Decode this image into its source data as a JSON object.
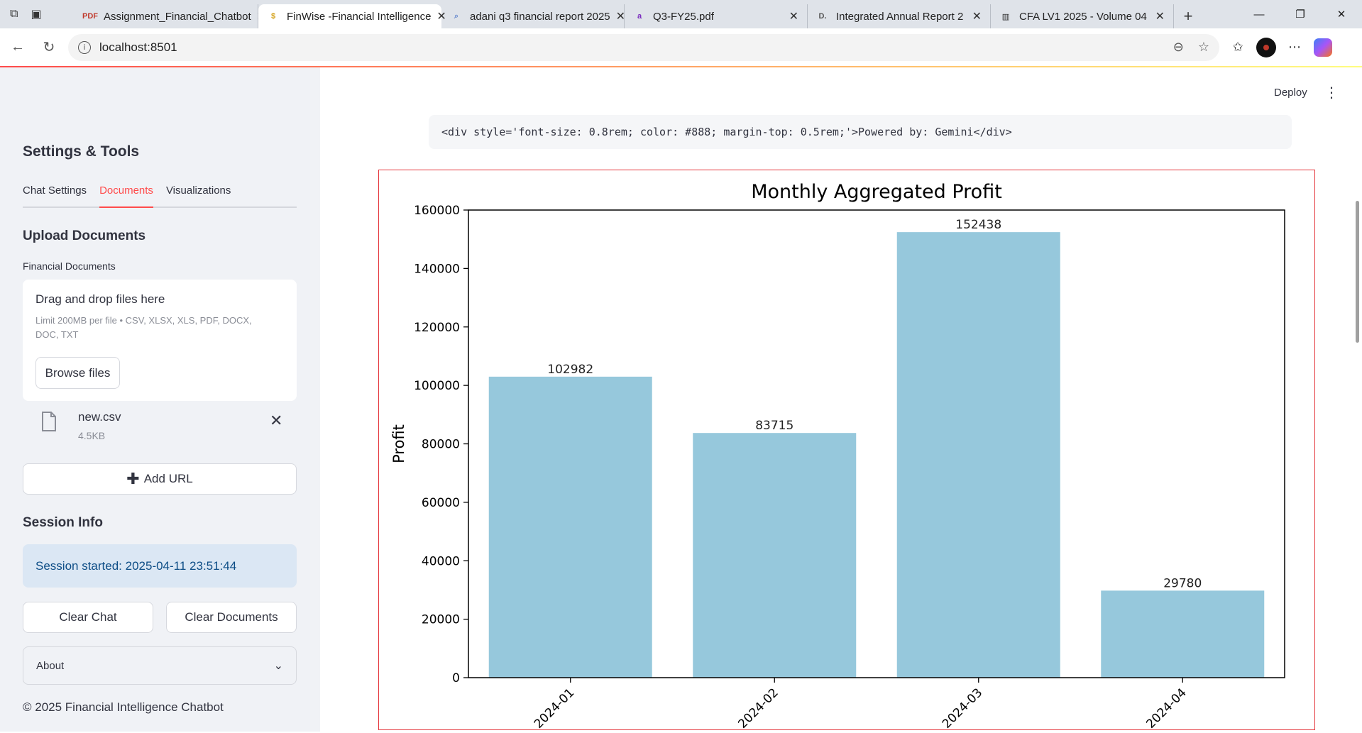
{
  "browser": {
    "tabs": [
      {
        "title": "Assignment_Financial_Chatbot",
        "favicon": "pdf-icon",
        "favicon_color": "#c0392b",
        "active": false
      },
      {
        "title": "FinWise -Financial Intelligence",
        "favicon": "money-bag-icon",
        "favicon_color": "#d4a017",
        "active": true
      },
      {
        "title": "adani q3 financial report 2025",
        "favicon": "search-icon",
        "favicon_color": "#6b8ccf",
        "active": false
      },
      {
        "title": "Q3-FY25.pdf",
        "favicon": "adani-a-icon",
        "favicon_color": "#7b2cbf",
        "active": false
      },
      {
        "title": "Integrated Annual Report 2",
        "favicon": "d-icon",
        "favicon_color": "#555555",
        "active": false
      },
      {
        "title": "CFA LV1 2025 - Volume 04",
        "favicon": "building-icon",
        "favicon_color": "#222222",
        "active": false
      }
    ],
    "url": "localhost:8501"
  },
  "sidebar": {
    "title": "Settings & Tools",
    "tabs": [
      "Chat Settings",
      "Documents",
      "Visualizations"
    ],
    "active_tab": "Documents",
    "upload_heading": "Upload Documents",
    "uploader_label": "Financial Documents",
    "dropzone_title": "Drag and drop files here",
    "dropzone_hint": "Limit 200MB per file • CSV, XLSX, XLS, PDF, DOCX, DOC, TXT",
    "browse_label": "Browse files",
    "file": {
      "name": "new.csv",
      "size": "4.5KB"
    },
    "add_url_label": "Add URL",
    "session_heading": "Session Info",
    "session_text": "Session started: 2025-04-11 23:51:44",
    "clear_chat_label": "Clear Chat",
    "clear_docs_label": "Clear Documents",
    "about_label": "About",
    "footer": "© 2025 Financial Intelligence Chatbot"
  },
  "main": {
    "deploy_label": "Deploy",
    "code_text": "<div style='font-size: 0.8rem; color: #888; margin-top: 0.5rem;'>Powered by: Gemini</div>"
  },
  "colors": {
    "accent": "#ff4b4b",
    "bar": "#96c8dc",
    "frame": "#e4343a"
  },
  "chart_data": {
    "type": "bar",
    "title": "Monthly Aggregated Profit",
    "xlabel": "",
    "ylabel": "Profit",
    "categories": [
      "2024-01",
      "2024-02",
      "2024-03",
      "2024-04"
    ],
    "values": [
      102982,
      83715,
      152438,
      29780
    ],
    "ylim": [
      0,
      160000
    ],
    "yticks": [
      0,
      20000,
      40000,
      60000,
      80000,
      100000,
      120000,
      140000,
      160000
    ],
    "grid": false,
    "legend": "none"
  }
}
